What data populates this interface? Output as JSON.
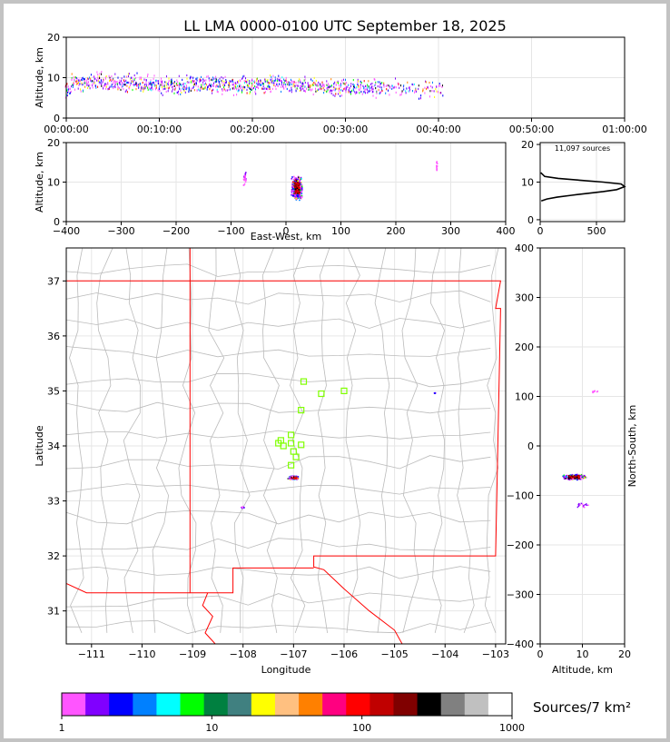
{
  "title": "LL LMA 0000-0100 UTC September 18, 2025",
  "colors": {
    "frame": "#c3c3c3",
    "state_border": "#ff0000",
    "county_lines": "#bbbbbb",
    "station_marker": "#7fff00",
    "grid": "#e6e6e6"
  },
  "chart_data": [
    {
      "type": "scatter",
      "panel": "altitude-vs-time",
      "ylabel": "Altitude, km",
      "ylim": [
        0,
        20
      ],
      "yticks": [
        "0",
        "10",
        "20"
      ],
      "xticks": [
        "00:00:00",
        "00:10:00",
        "00:20:00",
        "00:30:00",
        "00:40:00",
        "00:50:00",
        "01:00:00"
      ],
      "x_range_minutes": [
        0,
        60
      ],
      "series": [
        {
          "x_minutes": [
            0.5,
            2,
            4,
            6,
            8,
            10,
            12,
            14,
            16,
            18,
            20,
            22,
            24,
            26,
            28,
            30,
            32,
            34,
            36,
            38,
            40
          ],
          "y_km": [
            9,
            9,
            9,
            8.5,
            8.5,
            8,
            8,
            8.5,
            8.5,
            8,
            8,
            8.5,
            8.5,
            8,
            7.5,
            7.5,
            7.5,
            7.5,
            7.5,
            7,
            7
          ]
        }
      ]
    },
    {
      "type": "scatter",
      "panel": "altitude-vs-east-west",
      "xlabel": "East-West, km",
      "ylabel": "Altitude, km",
      "xlim": [
        -400,
        400
      ],
      "ylim": [
        0,
        20
      ],
      "xticks": [
        "−400",
        "−300",
        "−200",
        "−100",
        "0",
        "100",
        "200",
        "300",
        "400"
      ],
      "yticks": [
        "0",
        "10",
        "20"
      ],
      "clusters": [
        {
          "x_km": 20,
          "y_km": 8.5
        },
        {
          "x_km": -75,
          "y_km": 11
        },
        {
          "x_km": 275,
          "y_km": 14
        }
      ]
    },
    {
      "type": "line",
      "panel": "altitude-histogram",
      "annotation": "11,097 sources",
      "xlim": [
        0,
        750
      ],
      "ylim": [
        0,
        20
      ],
      "xticks": [
        "0",
        "500"
      ],
      "yticks": [
        "0",
        "10",
        "20"
      ],
      "points": [
        [
          10,
          5
        ],
        [
          60,
          5.5
        ],
        [
          150,
          6
        ],
        [
          280,
          6.5
        ],
        [
          420,
          7
        ],
        [
          560,
          7.5
        ],
        [
          680,
          8
        ],
        [
          760,
          8.8
        ],
        [
          720,
          9.5
        ],
        [
          560,
          10
        ],
        [
          350,
          10.5
        ],
        [
          160,
          11
        ],
        [
          40,
          11.5
        ],
        [
          5,
          12.5
        ]
      ]
    },
    {
      "type": "scatter",
      "panel": "plan-view",
      "xlabel": "Longitude",
      "ylabel": "Latitude",
      "xlim": [
        -111.5,
        -102.8
      ],
      "ylim": [
        30.4,
        37.6
      ],
      "xticks": [
        "−111",
        "−110",
        "−109",
        "−108",
        "−107",
        "−106",
        "−105",
        "−104",
        "−103"
      ],
      "yticks": [
        "31",
        "32",
        "33",
        "34",
        "35",
        "36",
        "37"
      ],
      "stations": [
        [
          -106.8,
          35.17
        ],
        [
          -106.45,
          34.95
        ],
        [
          -106.0,
          35.0
        ],
        [
          -106.85,
          34.65
        ],
        [
          -107.25,
          34.1
        ],
        [
          -107.05,
          34.2
        ],
        [
          -107.3,
          34.05
        ],
        [
          -107.2,
          34.0
        ],
        [
          -107.05,
          34.05
        ],
        [
          -106.85,
          34.02
        ],
        [
          -107.0,
          33.9
        ],
        [
          -106.95,
          33.8
        ],
        [
          -107.05,
          33.65
        ]
      ],
      "source_clusters": [
        {
          "lon": -107.0,
          "lat": 33.42
        },
        {
          "lon": -108.0,
          "lat": 32.88
        },
        {
          "lon": -104.2,
          "lat": 34.96
        }
      ]
    },
    {
      "type": "scatter",
      "panel": "north-south-vs-altitude",
      "xlabel": "Altitude, km",
      "ylabel": "North-South, km",
      "xlim": [
        0,
        20
      ],
      "ylim": [
        -400,
        400
      ],
      "xticks": [
        "0",
        "10",
        "20"
      ],
      "yticks": [
        "−400",
        "−300",
        "−200",
        "−100",
        "0",
        "100",
        "200",
        "300",
        "400"
      ],
      "clusters": [
        {
          "x_km": 8,
          "y_km": -63
        },
        {
          "x_km": 10,
          "y_km": -120
        },
        {
          "x_km": 13,
          "y_km": 110
        }
      ]
    }
  ],
  "colorbar": {
    "label": "Sources/7 km²",
    "ticks": [
      "1",
      "10",
      "100",
      "1000"
    ],
    "colors": [
      "#ff55ff",
      "#8000ff",
      "#0000ff",
      "#0080ff",
      "#00ffff",
      "#00ff00",
      "#008040",
      "#408080",
      "#ffff00",
      "#ffc080",
      "#ff8000",
      "#ff0080",
      "#ff0000",
      "#c00000",
      "#800000",
      "#000000",
      "#808080",
      "#c0c0c0",
      "#ffffff"
    ]
  },
  "labels": {
    "annotation": "11,097 sources"
  }
}
